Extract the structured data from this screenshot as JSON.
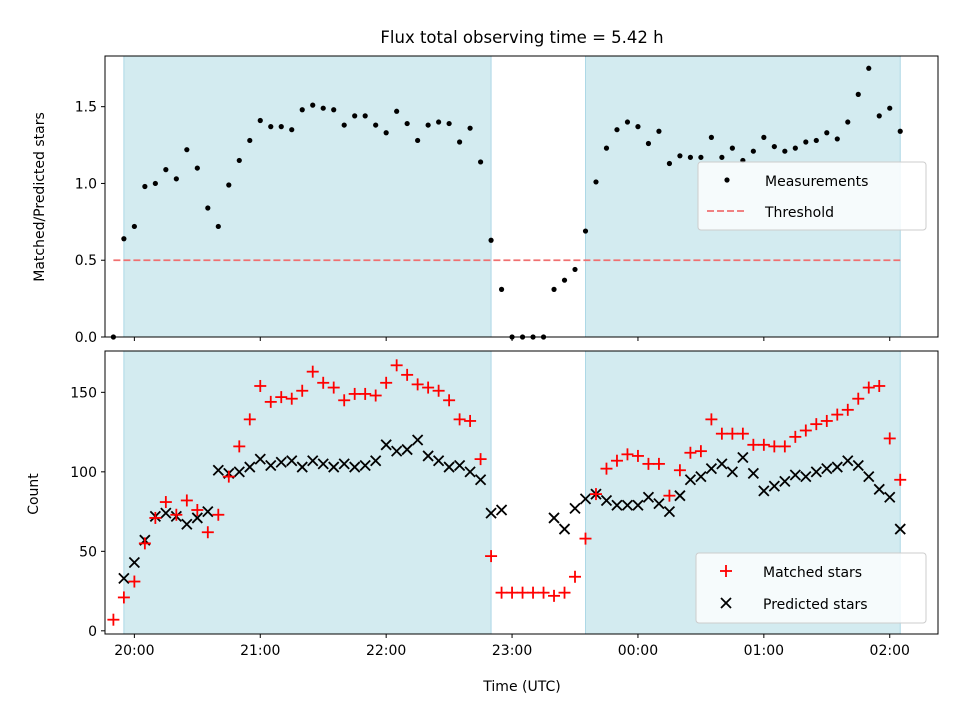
{
  "chart_data": [
    {
      "type": "scatter",
      "title": "Flux total observing time = 5.42 h",
      "xlabel": "",
      "ylabel": "Matched/Predicted stars",
      "xlim": [
        "19:46",
        "02:23"
      ],
      "ylim": [
        0,
        1.83
      ],
      "yticks": [
        0.0,
        0.5,
        1.0,
        1.5
      ],
      "ytick_labels": [
        "0.0",
        "0.5",
        "1.0",
        "1.5"
      ],
      "legend_position": "center-right",
      "shaded_intervals": [
        [
          "19:55",
          "22:50"
        ],
        [
          "23:35",
          "02:05"
        ]
      ],
      "shade_color": "#d3ebf0",
      "threshold": {
        "name": "Threshold",
        "value": 0.5,
        "x_range": [
          "19:50",
          "02:05"
        ],
        "color": "#f07070"
      },
      "series": [
        {
          "name": "Measurements",
          "color": "#000000",
          "x": [
            "19:50",
            "19:55",
            "20:00",
            "20:05",
            "20:10",
            "20:15",
            "20:20",
            "20:25",
            "20:30",
            "20:35",
            "20:40",
            "20:45",
            "20:50",
            "20:55",
            "21:00",
            "21:05",
            "21:10",
            "21:15",
            "21:20",
            "21:25",
            "21:30",
            "21:35",
            "21:40",
            "21:45",
            "21:50",
            "21:55",
            "22:00",
            "22:05",
            "22:10",
            "22:15",
            "22:20",
            "22:25",
            "22:30",
            "22:35",
            "22:40",
            "22:45",
            "22:50",
            "22:55",
            "23:00",
            "23:05",
            "23:10",
            "23:15",
            "23:20",
            "23:25",
            "23:30",
            "23:35",
            "23:40",
            "23:45",
            "23:50",
            "23:55",
            "00:00",
            "00:05",
            "00:10",
            "00:15",
            "00:20",
            "00:25",
            "00:30",
            "00:35",
            "00:40",
            "00:45",
            "00:50",
            "00:55",
            "01:00",
            "01:05",
            "01:10",
            "01:15",
            "01:20",
            "01:25",
            "01:30",
            "01:35",
            "01:40",
            "01:45",
            "01:50",
            "01:55",
            "02:00",
            "02:05"
          ],
          "y": [
            0.0,
            0.64,
            0.72,
            0.98,
            1.0,
            1.09,
            1.03,
            1.22,
            1.1,
            0.84,
            0.72,
            0.99,
            1.15,
            1.28,
            1.41,
            1.37,
            1.37,
            1.35,
            1.48,
            1.51,
            1.49,
            1.48,
            1.38,
            1.44,
            1.44,
            1.38,
            1.33,
            1.47,
            1.39,
            1.28,
            1.38,
            1.4,
            1.39,
            1.27,
            1.36,
            1.14,
            0.63,
            0.31,
            0.0,
            0.0,
            0.0,
            0.0,
            0.31,
            0.37,
            0.44,
            0.69,
            1.01,
            1.23,
            1.35,
            1.4,
            1.37,
            1.26,
            1.34,
            1.13,
            1.18,
            1.17,
            1.17,
            1.3,
            1.17,
            1.23,
            1.15,
            1.21,
            1.3,
            1.24,
            1.21,
            1.23,
            1.27,
            1.28,
            1.33,
            1.29,
            1.4,
            1.58,
            1.75,
            1.44,
            1.49,
            1.34
          ]
        }
      ]
    },
    {
      "type": "scatter",
      "title": "",
      "xlabel": "Time (UTC)",
      "ylabel": "Count",
      "xlim": [
        "19:46",
        "02:23"
      ],
      "ylim": [
        -2,
        176
      ],
      "yticks": [
        0,
        50,
        100,
        150
      ],
      "ytick_labels": [
        "0",
        "50",
        "100",
        "150"
      ],
      "xticks": [
        "20:00",
        "21:00",
        "22:00",
        "23:00",
        "00:00",
        "01:00",
        "02:00"
      ],
      "legend_position": "lower-right",
      "shaded_intervals": [
        [
          "19:55",
          "22:50"
        ],
        [
          "23:35",
          "02:05"
        ]
      ],
      "shade_color": "#d3ebf0",
      "series": [
        {
          "name": "Matched stars",
          "marker": "plus",
          "color": "#ff0000",
          "x": [
            "19:50",
            "19:55",
            "20:00",
            "20:05",
            "20:10",
            "20:15",
            "20:20",
            "20:25",
            "20:30",
            "20:35",
            "20:40",
            "20:45",
            "20:50",
            "20:55",
            "21:00",
            "21:05",
            "21:10",
            "21:15",
            "21:20",
            "21:25",
            "21:30",
            "21:35",
            "21:40",
            "21:45",
            "21:50",
            "21:55",
            "22:00",
            "22:05",
            "22:10",
            "22:15",
            "22:20",
            "22:25",
            "22:30",
            "22:35",
            "22:40",
            "22:45",
            "22:50",
            "22:55",
            "23:00",
            "23:05",
            "23:10",
            "23:15",
            "23:20",
            "23:25",
            "23:30",
            "23:35",
            "23:40",
            "23:45",
            "23:50",
            "23:55",
            "00:00",
            "00:05",
            "00:10",
            "00:15",
            "00:20",
            "00:25",
            "00:30",
            "00:35",
            "00:40",
            "00:45",
            "00:50",
            "00:55",
            "01:00",
            "01:05",
            "01:10",
            "01:15",
            "01:20",
            "01:25",
            "01:30",
            "01:35",
            "01:40",
            "01:45",
            "01:50",
            "01:55",
            "02:00",
            "02:05"
          ],
          "y": [
            7,
            21,
            31,
            55,
            71,
            81,
            73,
            82,
            76,
            62,
            73,
            97,
            116,
            133,
            154,
            144,
            147,
            146,
            151,
            163,
            156,
            153,
            145,
            149,
            149,
            148,
            156,
            167,
            161,
            155,
            153,
            151,
            145,
            133,
            132,
            108,
            47,
            24,
            24,
            24,
            24,
            24,
            22,
            24,
            34,
            58,
            86,
            102,
            107,
            111,
            110,
            105,
            105,
            85,
            101,
            112,
            113,
            133,
            124,
            124,
            124,
            117,
            117,
            116,
            116,
            122,
            126,
            130,
            132,
            136,
            139,
            146,
            153,
            154,
            121,
            95
          ]
        },
        {
          "name": "Predicted stars",
          "marker": "x",
          "color": "#000000",
          "x": [
            "19:55",
            "20:00",
            "20:05",
            "20:10",
            "20:15",
            "20:20",
            "20:25",
            "20:30",
            "20:35",
            "20:40",
            "20:45",
            "20:50",
            "20:55",
            "21:00",
            "21:05",
            "21:10",
            "21:15",
            "21:20",
            "21:25",
            "21:30",
            "21:35",
            "21:40",
            "21:45",
            "21:50",
            "21:55",
            "22:00",
            "22:05",
            "22:10",
            "22:15",
            "22:20",
            "22:25",
            "22:30",
            "22:35",
            "22:40",
            "22:45",
            "22:50",
            "22:55",
            "23:20",
            "23:25",
            "23:30",
            "23:35",
            "23:40",
            "23:45",
            "23:50",
            "23:55",
            "00:00",
            "00:05",
            "00:10",
            "00:15",
            "00:20",
            "00:25",
            "00:30",
            "00:35",
            "00:40",
            "00:45",
            "00:50",
            "00:55",
            "01:00",
            "01:05",
            "01:10",
            "01:15",
            "01:20",
            "01:25",
            "01:30",
            "01:35",
            "01:40",
            "01:45",
            "01:50",
            "01:55",
            "02:00",
            "02:05"
          ],
          "y": [
            33,
            43,
            57,
            72,
            74,
            72,
            67,
            71,
            75,
            101,
            99,
            100,
            103,
            108,
            104,
            106,
            107,
            103,
            107,
            105,
            103,
            105,
            103,
            104,
            107,
            117,
            113,
            114,
            120,
            110,
            107,
            103,
            104,
            100,
            95,
            74,
            76,
            71,
            64,
            77,
            83,
            86,
            82,
            79,
            79,
            79,
            84,
            80,
            75,
            85,
            95,
            97,
            102,
            105,
            100,
            109,
            99,
            88,
            91,
            94,
            98,
            97,
            100,
            102,
            103,
            107,
            104,
            97,
            89,
            84,
            64
          ]
        }
      ]
    }
  ]
}
